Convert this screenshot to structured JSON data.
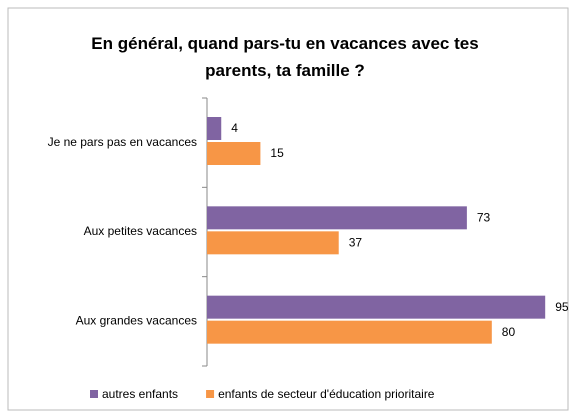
{
  "chart_data": {
    "type": "hbar",
    "title": "En général, quand pars-tu en vacances avec tes parents, ta famille ?",
    "categories": [
      "Je ne pars pas en vacances",
      "Aux petites vacances",
      "Aux grandes vacances"
    ],
    "series": [
      {
        "name": "autres enfants",
        "color": "#8064a2",
        "values": [
          4,
          73,
          95
        ]
      },
      {
        "name": "enfants de secteur d'éducation prioritaire",
        "color": "#f79646",
        "values": [
          15,
          37,
          80
        ]
      }
    ],
    "xlim": [
      0,
      100
    ],
    "legend": "bottom"
  }
}
